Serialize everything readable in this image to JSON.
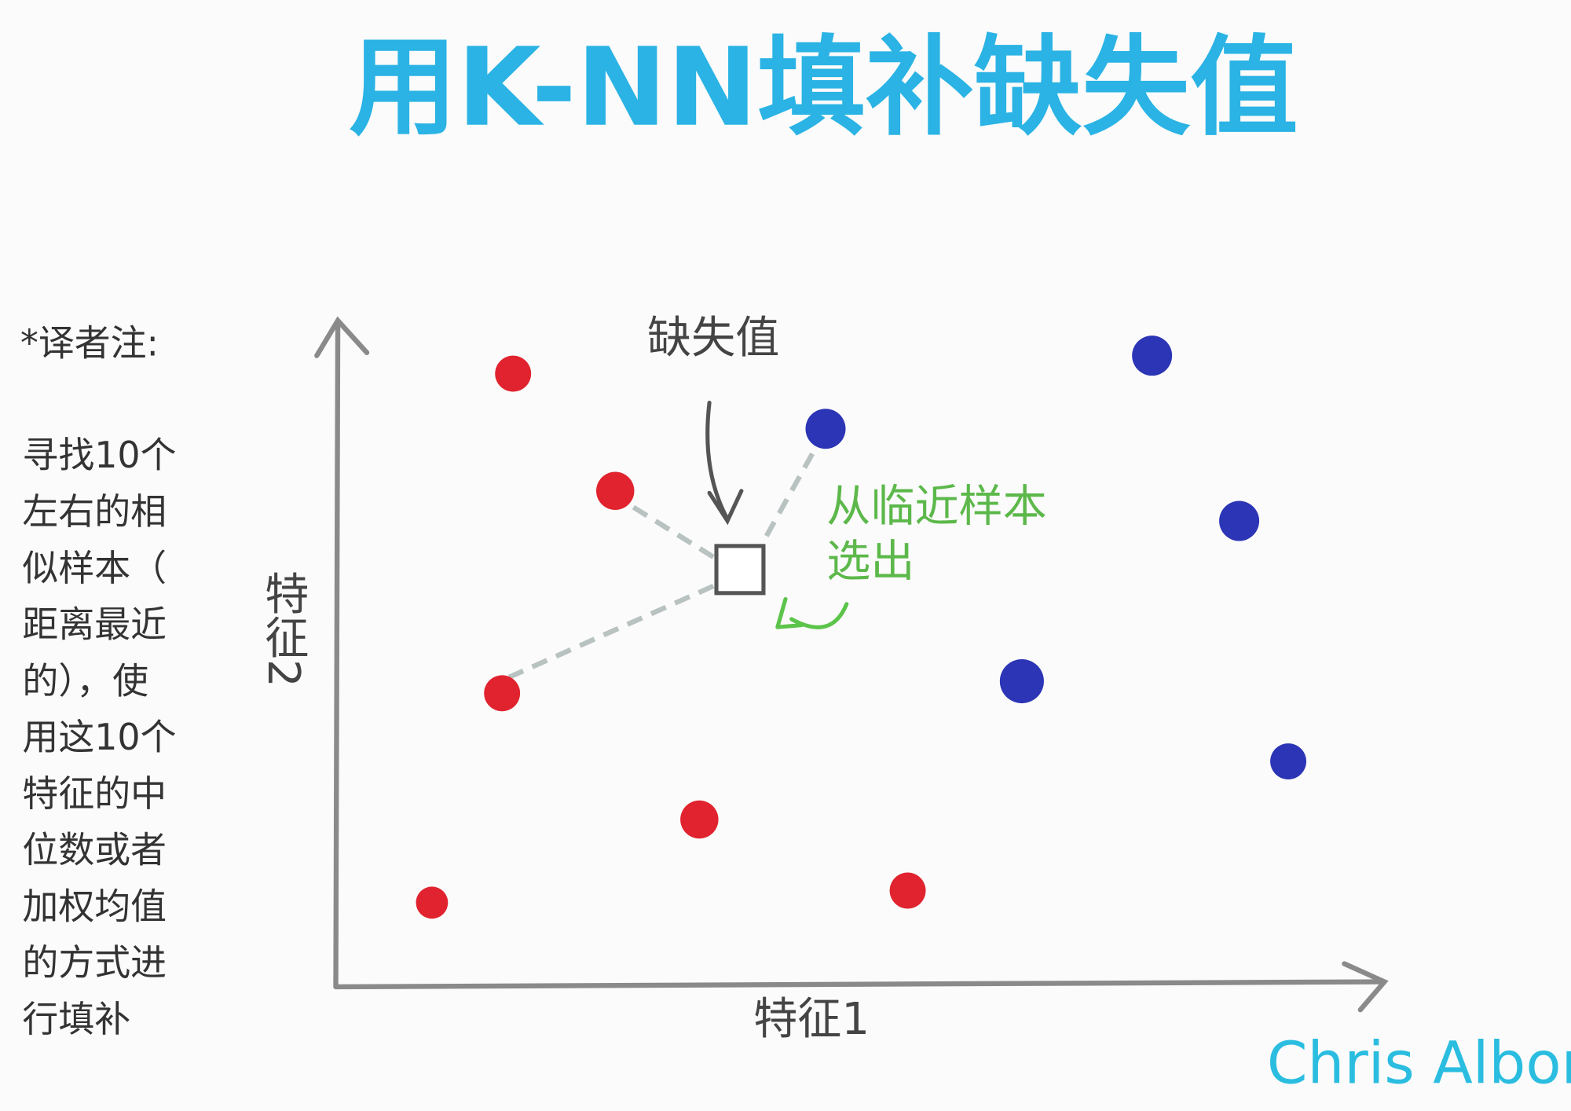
{
  "title": "用K-NN填补缺失值",
  "note": {
    "heading": "*译者注:",
    "lines": [
      "寻找10个",
      "左右的相",
      "似样本（",
      "距离最近",
      "的），使",
      "用这10个",
      "特征的中",
      "位数或者",
      "加权均值",
      "的方式进",
      "行填补"
    ]
  },
  "axes": {
    "x_label": "特征1",
    "y_label": "特征2"
  },
  "labels": {
    "missing": "缺失值",
    "pick": [
      "从临近样本",
      "选出"
    ]
  },
  "signature": "Chris Albon"
}
